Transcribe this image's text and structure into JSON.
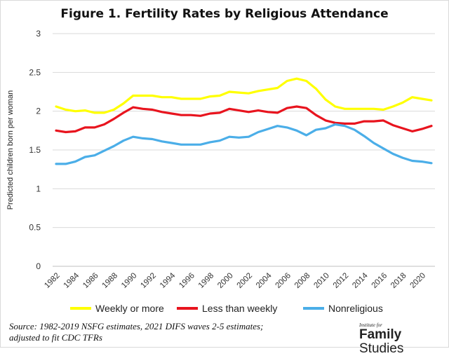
{
  "chart_data": {
    "type": "line",
    "title": "Figure 1. Fertility Rates by Religious Attendance",
    "ylabel": "Predicted children born per woman",
    "xlabel": "",
    "ylim": [
      0,
      3
    ],
    "yticks": [
      "0",
      "0.5",
      "1",
      "1.5",
      "2",
      "2.5",
      "3"
    ],
    "x": [
      1982,
      1983,
      1984,
      1985,
      1986,
      1987,
      1988,
      1989,
      1990,
      1991,
      1992,
      1993,
      1994,
      1995,
      1996,
      1997,
      1998,
      1999,
      2000,
      2001,
      2002,
      2003,
      2004,
      2005,
      2006,
      2007,
      2008,
      2009,
      2010,
      2011,
      2012,
      2013,
      2014,
      2015,
      2016,
      2017,
      2018,
      2019,
      2020,
      2021
    ],
    "xtick_labels": [
      "1982",
      "1984",
      "1986",
      "1988",
      "1990",
      "1992",
      "1994",
      "1996",
      "1998",
      "2000",
      "2002",
      "2004",
      "2006",
      "2008",
      "2010",
      "2012",
      "2014",
      "2016",
      "2018",
      "2020"
    ],
    "grid": "horizontal",
    "legend_position": "bottom",
    "series": [
      {
        "name": "Weekly or more",
        "color": "#ffff00",
        "values": [
          2.06,
          2.02,
          2.0,
          2.01,
          1.98,
          1.98,
          2.02,
          2.1,
          2.2,
          2.2,
          2.2,
          2.18,
          2.18,
          2.16,
          2.16,
          2.16,
          2.19,
          2.2,
          2.25,
          2.24,
          2.23,
          2.26,
          2.28,
          2.3,
          2.39,
          2.42,
          2.39,
          2.29,
          2.15,
          2.06,
          2.03,
          2.03,
          2.03,
          2.03,
          2.02,
          2.06,
          2.11,
          2.18,
          2.16,
          2.14
        ]
      },
      {
        "name": "Less than weekly",
        "color": "#e8141e",
        "values": [
          1.75,
          1.73,
          1.74,
          1.79,
          1.79,
          1.83,
          1.9,
          1.98,
          2.05,
          2.03,
          2.02,
          1.99,
          1.97,
          1.95,
          1.95,
          1.94,
          1.97,
          1.98,
          2.03,
          2.01,
          1.99,
          2.01,
          1.99,
          1.98,
          2.04,
          2.06,
          2.04,
          1.95,
          1.88,
          1.85,
          1.84,
          1.84,
          1.87,
          1.87,
          1.88,
          1.82,
          1.78,
          1.74,
          1.77,
          1.81
        ]
      },
      {
        "name": "Nonreligious",
        "color": "#4baee8",
        "values": [
          1.32,
          1.32,
          1.35,
          1.41,
          1.43,
          1.49,
          1.55,
          1.62,
          1.67,
          1.65,
          1.64,
          1.61,
          1.59,
          1.57,
          1.57,
          1.57,
          1.6,
          1.62,
          1.67,
          1.66,
          1.67,
          1.73,
          1.77,
          1.81,
          1.79,
          1.75,
          1.69,
          1.76,
          1.78,
          1.83,
          1.81,
          1.76,
          1.68,
          1.59,
          1.52,
          1.45,
          1.4,
          1.36,
          1.35,
          1.33
        ]
      }
    ]
  },
  "source_note": {
    "line1": "Source: 1982-2019 NSFG estimates, 2021 DIFS waves 2-5 estimates;",
    "line2": "adjusted to fit CDC TFRs"
  },
  "brand": {
    "small_line1": "Institute for",
    "big_word1": "Family",
    "big_word2": "Studies"
  }
}
